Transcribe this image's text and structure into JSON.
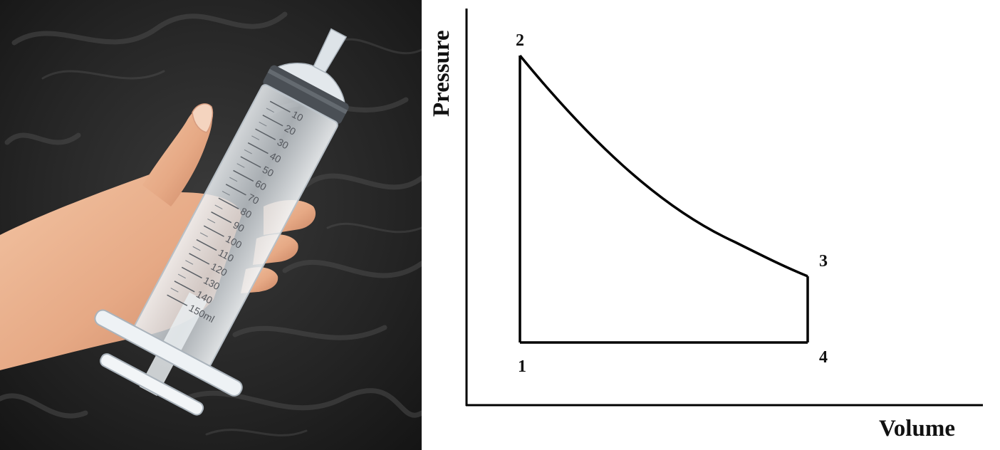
{
  "photo": {
    "subject": "syringe-in-hand",
    "scale_marks": [
      "10",
      "20",
      "30",
      "40",
      "50",
      "60",
      "70",
      "80",
      "90",
      "100",
      "110",
      "120",
      "130",
      "140",
      "150ml"
    ],
    "colors": {
      "background": "#1c1c1c",
      "skin": "#e9b08d",
      "barrel": "#d7dde2",
      "ring": "#4a4f55"
    }
  },
  "diagram": {
    "x_axis_label": "Volume",
    "y_axis_label": "Pressure",
    "points": [
      {
        "id": "1",
        "label": "1"
      },
      {
        "id": "2",
        "label": "2"
      },
      {
        "id": "3",
        "label": "3"
      },
      {
        "id": "4",
        "label": "4"
      }
    ],
    "cycle_order": [
      "1",
      "2",
      "3",
      "4"
    ],
    "line_color": "#000000"
  }
}
